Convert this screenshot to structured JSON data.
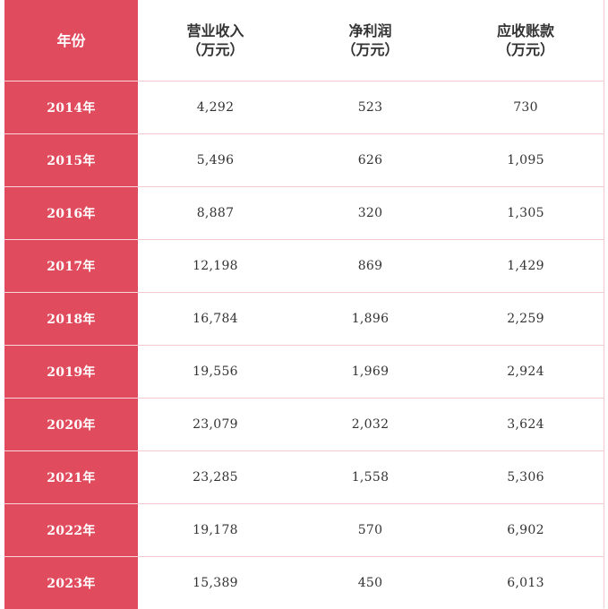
{
  "table": {
    "headers": [
      {
        "lines": [
          "年份"
        ]
      },
      {
        "lines": [
          "营业收入",
          "（万元）"
        ]
      },
      {
        "lines": [
          "净利润",
          "（万元）"
        ]
      },
      {
        "lines": [
          "应收账款",
          "（万元）"
        ]
      }
    ],
    "rows": [
      {
        "year": "2014年",
        "revenue": "4,292",
        "net_profit": "523",
        "receivables": "730"
      },
      {
        "year": "2015年",
        "revenue": "5,496",
        "net_profit": "626",
        "receivables": "1,095"
      },
      {
        "year": "2016年",
        "revenue": "8,887",
        "net_profit": "320",
        "receivables": "1,305"
      },
      {
        "year": "2017年",
        "revenue": "12,198",
        "net_profit": "869",
        "receivables": "1,429"
      },
      {
        "year": "2018年",
        "revenue": "16,784",
        "net_profit": "1,896",
        "receivables": "2,259"
      },
      {
        "year": "2019年",
        "revenue": "19,556",
        "net_profit": "1,969",
        "receivables": "2,924"
      },
      {
        "year": "2020年",
        "revenue": "23,079",
        "net_profit": "2,032",
        "receivables": "3,624"
      },
      {
        "year": "2021年",
        "revenue": "23,285",
        "net_profit": "1,558",
        "receivables": "5,306"
      },
      {
        "year": "2022年",
        "revenue": "19,178",
        "net_profit": "570",
        "receivables": "6,902"
      },
      {
        "year": "2023年",
        "revenue": "15,389",
        "net_profit": "450",
        "receivables": "6,013"
      }
    ]
  },
  "colors": {
    "year_column_bg": "#e14b5e",
    "grid_line": "#f2c9cf",
    "text": "#333333"
  }
}
